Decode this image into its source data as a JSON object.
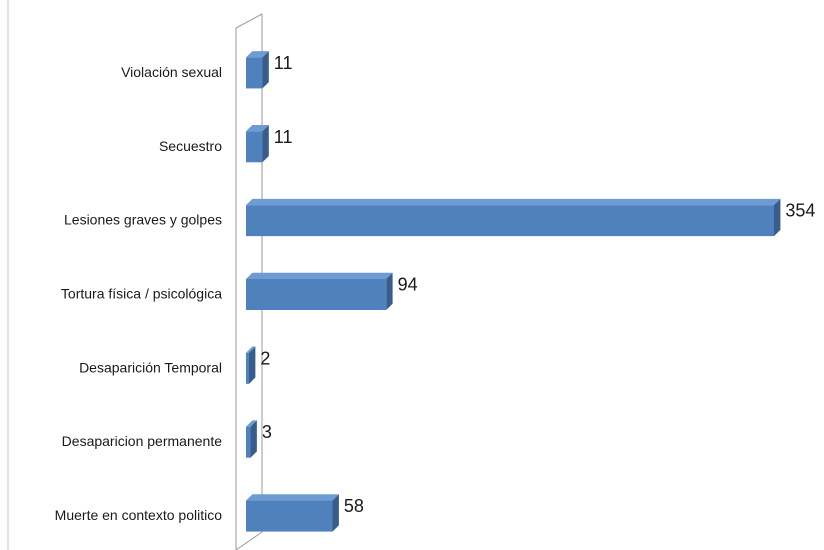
{
  "chart_data": {
    "type": "bar",
    "orientation": "horizontal",
    "three_d": true,
    "categories": [
      "Violación sexual",
      "Secuestro",
      "Lesiones graves y golpes",
      "Tortura física / psicológica",
      "Desaparición Temporal",
      "Desaparicion permanente",
      "Muerte en contexto politico"
    ],
    "values": [
      11,
      11,
      354,
      94,
      2,
      3,
      58
    ],
    "xlim": [
      0,
      354
    ],
    "grid": false,
    "legend": "none",
    "colors": {
      "bar_front": "#4f81bd",
      "bar_top": "#6f9bd3",
      "bar_side": "#385d8a",
      "axis": "#9a9a9a"
    }
  }
}
